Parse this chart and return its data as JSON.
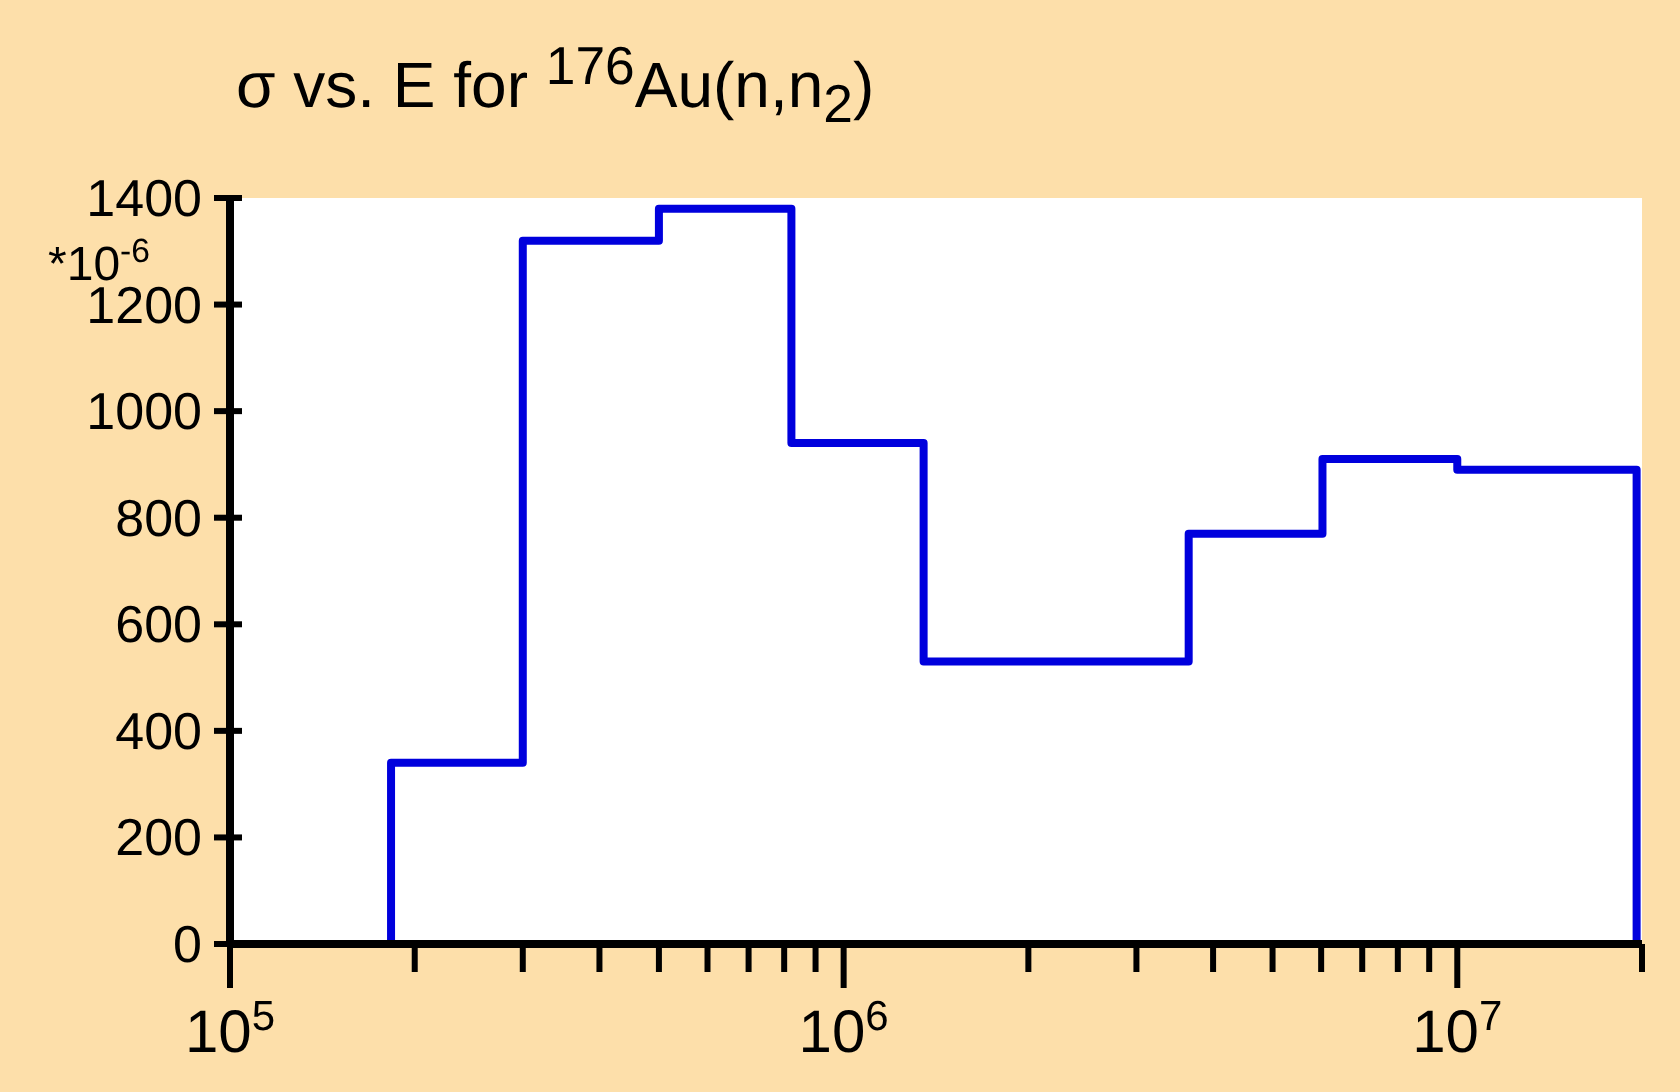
{
  "chart_data": {
    "type": "histogram",
    "title": "σ vs. E for $^{176}$Au(n,n$_{2}$)",
    "ylabel": "*10$^{-6}$",
    "bins": [
      183000,
      300000,
      500000,
      822000,
      1350000,
      3650000,
      6030000,
      10000000,
      19600000
    ],
    "values": [
      340,
      1320,
      1380,
      940,
      530,
      770,
      910,
      890
    ],
    "color": "#0000dd",
    "log": "x",
    "xlim": [
      100000,
      20000000
    ],
    "xticks": [
      {
        "value": 100000,
        "label": "10$^{5}$"
      },
      {
        "value": 200000,
        "label": null
      },
      {
        "value": 300000,
        "label": null
      },
      {
        "value": 400000,
        "label": null
      },
      {
        "value": 500000,
        "label": null
      },
      {
        "value": 600000,
        "label": null
      },
      {
        "value": 700000,
        "label": null
      },
      {
        "value": 800000,
        "label": null
      },
      {
        "value": 900000,
        "label": null
      },
      {
        "value": 1000000,
        "label": "10$^{6}$"
      },
      {
        "value": 2000000,
        "label": null
      },
      {
        "value": 3000000,
        "label": null
      },
      {
        "value": 4000000,
        "label": null
      },
      {
        "value": 5000000,
        "label": null
      },
      {
        "value": 6000000,
        "label": null
      },
      {
        "value": 7000000,
        "label": null
      },
      {
        "value": 8000000,
        "label": null
      },
      {
        "value": 9000000,
        "label": null
      },
      {
        "value": 10000000,
        "label": "10$^{7}$"
      },
      {
        "value": 20000000,
        "label": null
      }
    ],
    "ylim": [
      0,
      1400
    ],
    "yticks": [
      0,
      200,
      400,
      600,
      800,
      1000,
      1200,
      1400
    ]
  }
}
